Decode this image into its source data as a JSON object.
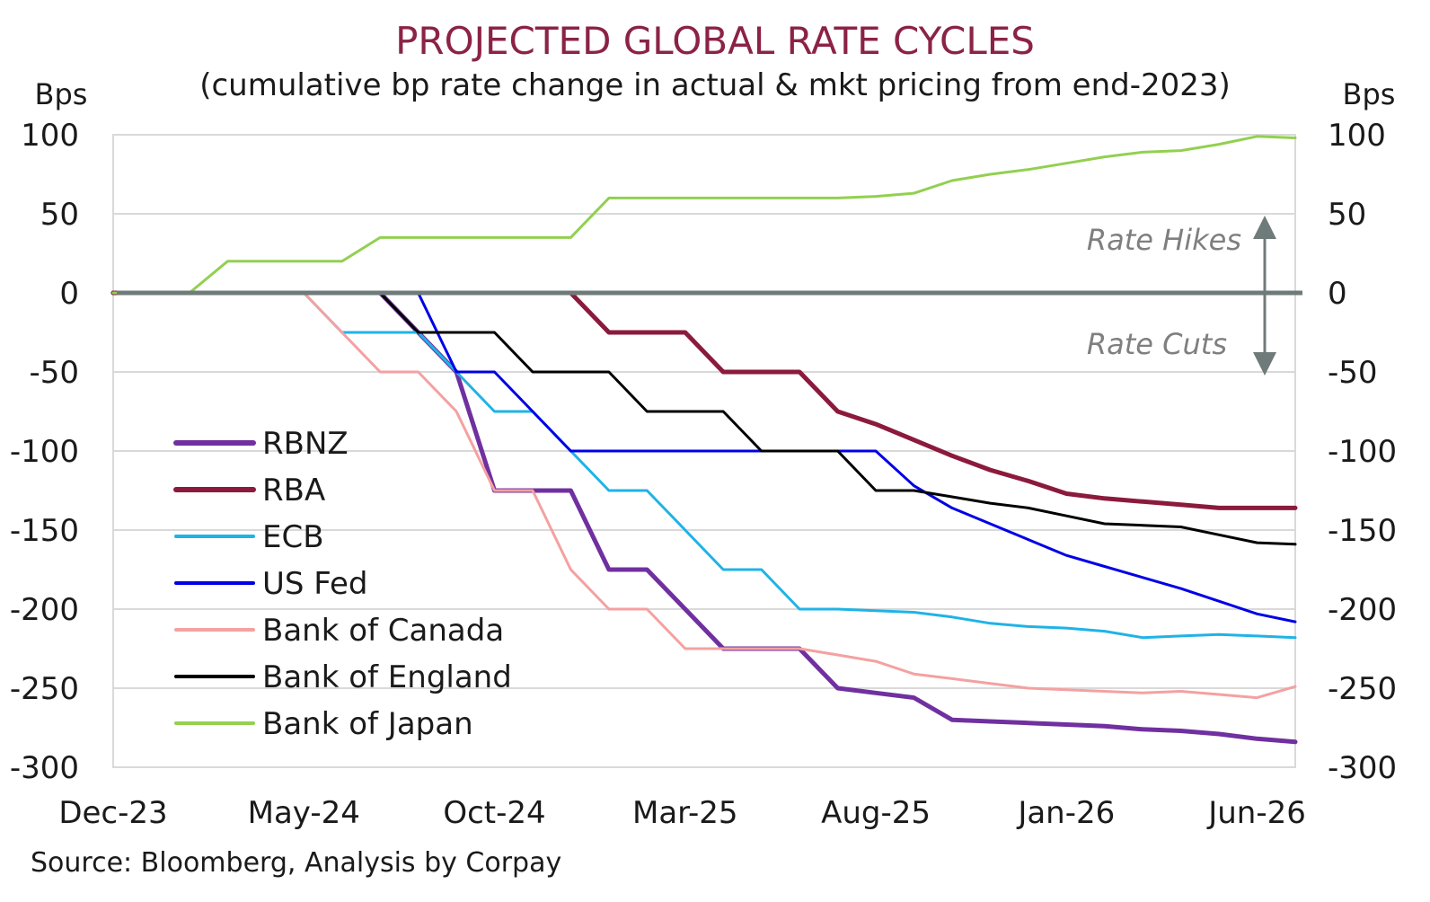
{
  "colors": {
    "title": "#8b2346",
    "grid": "#d9d9d9",
    "zero_line": "#6f7b7a",
    "arrow": "#6f7b7a",
    "annotation": "#7f7f7f"
  },
  "chart_data": {
    "type": "line",
    "title": "PROJECTED GLOBAL RATE CYCLES",
    "subtitle": "(cumulative bp rate change in actual & mkt pricing from end-2023)",
    "ylabel_left": "Bps",
    "ylabel_right": "Bps",
    "ylim": [
      -300,
      100
    ],
    "yticks": [
      100,
      50,
      0,
      -50,
      -100,
      -150,
      -200,
      -250,
      -300
    ],
    "y_tick_labels": [
      "100",
      "50",
      "0",
      "-50",
      "-100",
      "-150",
      "-200",
      "-250",
      "-300"
    ],
    "x_range": [
      "2023-12",
      "2026-07"
    ],
    "x_ticks": [
      "2023-12",
      "2024-05",
      "2024-10",
      "2025-03",
      "2025-08",
      "2026-01",
      "2026-06"
    ],
    "x_tick_labels": [
      "Dec-23",
      "May-24",
      "Oct-24",
      "Mar-25",
      "Aug-25",
      "Jan-26",
      "Jun-26"
    ],
    "grid": true,
    "legend_position": "left",
    "annotations": {
      "hikes": "Rate Hikes",
      "cuts": "Rate Cuts"
    },
    "source": "Source: Bloomberg, Analysis by Corpay",
    "series": [
      {
        "name": "RBNZ",
        "color": "#7030a0",
        "width": 5,
        "x": [
          "2023-12",
          "2024-01",
          "2024-02",
          "2024-03",
          "2024-04",
          "2024-05",
          "2024-06",
          "2024-07",
          "2024-08",
          "2024-09",
          "2024-10",
          "2024-11",
          "2024-12",
          "2025-01",
          "2025-02",
          "2025-03",
          "2025-04",
          "2025-05",
          "2025-06",
          "2025-07",
          "2025-08",
          "2025-09",
          "2025-10",
          "2025-11",
          "2025-12",
          "2026-01",
          "2026-02",
          "2026-03",
          "2026-04",
          "2026-05",
          "2026-06",
          "2026-07"
        ],
        "values": [
          0,
          0,
          0,
          0,
          0,
          0,
          0,
          0,
          -25,
          -50,
          -125,
          -125,
          -125,
          -175,
          -175,
          -200,
          -225,
          -225,
          -225,
          -250,
          -253,
          -256,
          -270,
          -271,
          -272,
          -273,
          -274,
          -276,
          -277,
          -279,
          -282,
          -284
        ]
      },
      {
        "name": "RBA",
        "color": "#8b1a3c",
        "width": 5,
        "x": [
          "2023-12",
          "2024-01",
          "2024-02",
          "2024-03",
          "2024-04",
          "2024-05",
          "2024-06",
          "2024-07",
          "2024-08",
          "2024-09",
          "2024-10",
          "2024-11",
          "2024-12",
          "2025-01",
          "2025-02",
          "2025-03",
          "2025-04",
          "2025-05",
          "2025-06",
          "2025-07",
          "2025-08",
          "2025-09",
          "2025-10",
          "2025-11",
          "2025-12",
          "2026-01",
          "2026-02",
          "2026-03",
          "2026-04",
          "2026-05",
          "2026-06",
          "2026-07"
        ],
        "values": [
          0,
          0,
          0,
          0,
          0,
          0,
          0,
          0,
          0,
          0,
          0,
          0,
          0,
          -25,
          -25,
          -25,
          -50,
          -50,
          -50,
          -75,
          -83,
          -93,
          -103,
          -112,
          -119,
          -127,
          -130,
          -132,
          -134,
          -136,
          -136,
          -136
        ]
      },
      {
        "name": "ECB",
        "color": "#1fb3e6",
        "width": 3,
        "x": [
          "2023-12",
          "2024-01",
          "2024-02",
          "2024-03",
          "2024-04",
          "2024-05",
          "2024-06",
          "2024-07",
          "2024-08",
          "2024-09",
          "2024-10",
          "2024-11",
          "2024-12",
          "2025-01",
          "2025-02",
          "2025-03",
          "2025-04",
          "2025-05",
          "2025-06",
          "2025-07",
          "2025-08",
          "2025-09",
          "2025-10",
          "2025-11",
          "2025-12",
          "2026-01",
          "2026-02",
          "2026-03",
          "2026-04",
          "2026-05",
          "2026-06",
          "2026-07"
        ],
        "values": [
          0,
          0,
          0,
          0,
          0,
          0,
          -25,
          -25,
          -25,
          -50,
          -75,
          -75,
          -100,
          -125,
          -125,
          -150,
          -175,
          -175,
          -200,
          -200,
          -201,
          -202,
          -205,
          -209,
          -211,
          -212,
          -214,
          -218,
          -217,
          -216,
          -217,
          -218
        ]
      },
      {
        "name": "US Fed",
        "color": "#0000e6",
        "width": 3,
        "x": [
          "2023-12",
          "2024-01",
          "2024-02",
          "2024-03",
          "2024-04",
          "2024-05",
          "2024-06",
          "2024-07",
          "2024-08",
          "2024-09",
          "2024-10",
          "2024-11",
          "2024-12",
          "2025-01",
          "2025-02",
          "2025-03",
          "2025-04",
          "2025-05",
          "2025-06",
          "2025-07",
          "2025-08",
          "2025-09",
          "2025-10",
          "2025-11",
          "2025-12",
          "2026-01",
          "2026-02",
          "2026-03",
          "2026-04",
          "2026-05",
          "2026-06",
          "2026-07"
        ],
        "values": [
          0,
          0,
          0,
          0,
          0,
          0,
          0,
          0,
          0,
          -50,
          -50,
          -75,
          -100,
          -100,
          -100,
          -100,
          -100,
          -100,
          -100,
          -100,
          -100,
          -122,
          -136,
          -146,
          -156,
          -166,
          -173,
          -180,
          -187,
          -195,
          -203,
          -208
        ]
      },
      {
        "name": "Bank of Canada",
        "color": "#f4a1a1",
        "width": 3,
        "x": [
          "2023-12",
          "2024-01",
          "2024-02",
          "2024-03",
          "2024-04",
          "2024-05",
          "2024-06",
          "2024-07",
          "2024-08",
          "2024-09",
          "2024-10",
          "2024-11",
          "2024-12",
          "2025-01",
          "2025-02",
          "2025-03",
          "2025-04",
          "2025-05",
          "2025-06",
          "2025-07",
          "2025-08",
          "2025-09",
          "2025-10",
          "2025-11",
          "2025-12",
          "2026-01",
          "2026-02",
          "2026-03",
          "2026-04",
          "2026-05",
          "2026-06",
          "2026-07"
        ],
        "values": [
          0,
          0,
          0,
          0,
          0,
          0,
          -25,
          -50,
          -50,
          -75,
          -125,
          -125,
          -175,
          -200,
          -200,
          -225,
          -225,
          -225,
          -225,
          -229,
          -233,
          -241,
          -244,
          -247,
          -250,
          -251,
          -252,
          -253,
          -252,
          -254,
          -256,
          -249
        ]
      },
      {
        "name": "Bank of England",
        "color": "#000000",
        "width": 3,
        "x": [
          "2023-12",
          "2024-01",
          "2024-02",
          "2024-03",
          "2024-04",
          "2024-05",
          "2024-06",
          "2024-07",
          "2024-08",
          "2024-09",
          "2024-10",
          "2024-11",
          "2024-12",
          "2025-01",
          "2025-02",
          "2025-03",
          "2025-04",
          "2025-05",
          "2025-06",
          "2025-07",
          "2025-08",
          "2025-09",
          "2025-10",
          "2025-11",
          "2025-12",
          "2026-01",
          "2026-02",
          "2026-03",
          "2026-04",
          "2026-05",
          "2026-06",
          "2026-07"
        ],
        "values": [
          0,
          0,
          0,
          0,
          0,
          0,
          0,
          0,
          -25,
          -25,
          -25,
          -50,
          -50,
          -50,
          -75,
          -75,
          -75,
          -100,
          -100,
          -100,
          -125,
          -125,
          -129,
          -133,
          -136,
          -141,
          -146,
          -147,
          -148,
          -153,
          -158,
          -159
        ]
      },
      {
        "name": "Bank of Japan",
        "color": "#92d050",
        "width": 3,
        "x": [
          "2023-12",
          "2024-01",
          "2024-02",
          "2024-03",
          "2024-04",
          "2024-05",
          "2024-06",
          "2024-07",
          "2024-08",
          "2024-09",
          "2024-10",
          "2024-11",
          "2024-12",
          "2025-01",
          "2025-02",
          "2025-03",
          "2025-04",
          "2025-05",
          "2025-06",
          "2025-07",
          "2025-08",
          "2025-09",
          "2025-10",
          "2025-11",
          "2025-12",
          "2026-01",
          "2026-02",
          "2026-03",
          "2026-04",
          "2026-05",
          "2026-06",
          "2026-07"
        ],
        "values": [
          0,
          0,
          0,
          20,
          20,
          20,
          20,
          35,
          35,
          35,
          35,
          35,
          35,
          60,
          60,
          60,
          60,
          60,
          60,
          60,
          61,
          63,
          71,
          75,
          78,
          82,
          86,
          89,
          90,
          94,
          99,
          98
        ]
      }
    ]
  }
}
